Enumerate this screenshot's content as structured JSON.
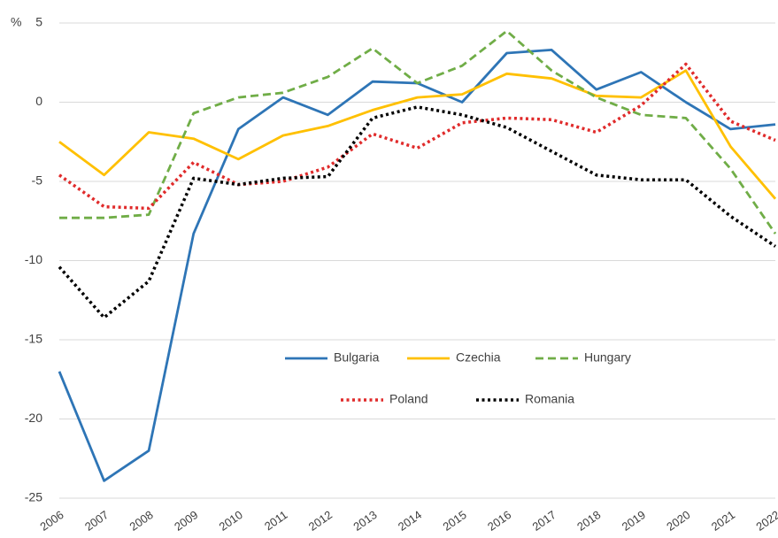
{
  "chart_data": {
    "type": "line",
    "y_label": "%",
    "categories": [
      "2006",
      "2007",
      "2008",
      "2009",
      "2010",
      "2011",
      "2012",
      "2013",
      "2014",
      "2015",
      "2016",
      "2017",
      "2018",
      "2019",
      "2020",
      "2021",
      "2022"
    ],
    "series": [
      {
        "name": "Bulgaria",
        "color": "#2e75b6",
        "style": "solid",
        "values": [
          -17,
          -23.9,
          -22,
          -8.3,
          -1.7,
          0.3,
          -0.8,
          1.3,
          1.2,
          0,
          3.1,
          3.3,
          0.8,
          1.9,
          0,
          -1.7,
          -1.4
        ]
      },
      {
        "name": "Czechia",
        "color": "#ffc000",
        "style": "solid",
        "values": [
          -2.5,
          -4.6,
          -1.9,
          -2.3,
          -3.6,
          -2.1,
          -1.5,
          -0.5,
          0.3,
          0.5,
          1.8,
          1.5,
          0.4,
          0.3,
          2,
          -2.8,
          -6.1
        ]
      },
      {
        "name": "Hungary",
        "color": "#70ad47",
        "style": "dashed",
        "values": [
          -7.3,
          -7.3,
          -7.1,
          -0.7,
          0.3,
          0.6,
          1.6,
          3.4,
          1.2,
          2.3,
          4.5,
          2,
          0.3,
          -0.8,
          -1,
          -4.2,
          -8.3
        ]
      },
      {
        "name": "Poland",
        "color": "#e02b2b",
        "style": "dotted",
        "values": [
          -4.6,
          -6.6,
          -6.7,
          -3.8,
          -5.2,
          -5,
          -4.1,
          -2,
          -2.9,
          -1.3,
          -1,
          -1.1,
          -1.9,
          -0.2,
          2.4,
          -1.2,
          -2.4
        ]
      },
      {
        "name": "Romania",
        "color": "#000000",
        "style": "dotted",
        "values": [
          -10.4,
          -13.6,
          -11.3,
          -4.8,
          -5.2,
          -4.8,
          -4.7,
          -1,
          -0.3,
          -0.8,
          -1.6,
          -3.1,
          -4.6,
          -4.9,
          -4.9,
          -7.2,
          -9.1
        ]
      }
    ],
    "ylim": [
      -25,
      5
    ],
    "yticks": [
      -25,
      -20,
      -15,
      -10,
      -5,
      0,
      5
    ],
    "grid": true,
    "legend": "center"
  }
}
